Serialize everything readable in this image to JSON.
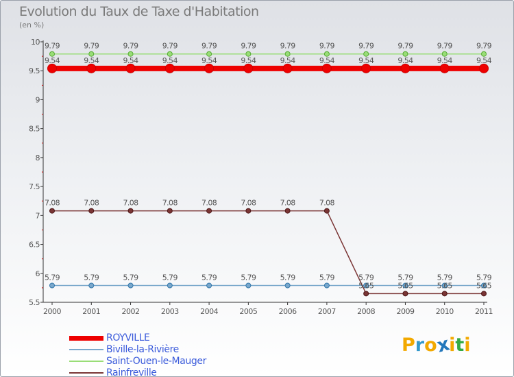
{
  "chart_data": {
    "type": "line",
    "title": "Evolution du Taux de Taxe d'Habitation",
    "subtitle": "(en %)",
    "xlabel": "",
    "ylabel": "",
    "x": [
      "2000",
      "2001",
      "2002",
      "2003",
      "2004",
      "2005",
      "2006",
      "2007",
      "2008",
      "2009",
      "2010",
      "2011"
    ],
    "ylim": [
      5.5,
      10
    ],
    "yticks": [
      "5.5",
      "6",
      "6.5",
      "7",
      "7.5",
      "8",
      "8.5",
      "9",
      "9.5",
      "10"
    ],
    "grid": false,
    "series": [
      {
        "name": "Saint-Ouen-le-Mauger",
        "color": "#99dd77",
        "lineWidth": 1.5,
        "values": [
          9.79,
          9.79,
          9.79,
          9.79,
          9.79,
          9.79,
          9.79,
          9.79,
          9.79,
          9.79,
          9.79,
          9.79
        ],
        "labels": [
          "9.79",
          "9.79",
          "9.79",
          "9.79",
          "9.79",
          "9.79",
          "9.79",
          "9.79",
          "9.79",
          "9.79",
          "9.79",
          "9.79"
        ],
        "labelPos": "above"
      },
      {
        "name": "ROYVILLE",
        "color": "#ee0000",
        "lineWidth": 8,
        "values": [
          9.54,
          9.54,
          9.54,
          9.54,
          9.54,
          9.54,
          9.54,
          9.54,
          9.54,
          9.54,
          9.54,
          9.54
        ],
        "labels": [
          "9.54",
          "9.54",
          "9.54",
          "9.54",
          "9.54",
          "9.54",
          "9.54",
          "9.54",
          "9.54",
          "9.54",
          "9.54",
          "9.54"
        ],
        "labelPos": "above"
      },
      {
        "name": "Rainfreville",
        "color": "#7a3535",
        "lineWidth": 1.5,
        "values": [
          7.08,
          7.08,
          7.08,
          7.08,
          7.08,
          7.08,
          7.08,
          7.08,
          5.65,
          5.65,
          5.65,
          5.65
        ],
        "labels": [
          "7.08",
          "7.08",
          "7.08",
          "7.08",
          "7.08",
          "7.08",
          "7.08",
          "7.08",
          "5.65",
          "5.65",
          "5.65",
          "5.65"
        ],
        "labelPos": "above"
      },
      {
        "name": "Biville-la-Rivière",
        "color": "#7aa8cc",
        "lineWidth": 1.5,
        "values": [
          5.79,
          5.79,
          5.79,
          5.79,
          5.79,
          5.79,
          5.79,
          5.79,
          5.79,
          5.79,
          5.79,
          5.79
        ],
        "labels": [
          "5.79",
          "5.79",
          "5.79",
          "5.79",
          "5.79",
          "5.79",
          "5.79",
          "5.79",
          "5.79",
          "5.79",
          "5.79",
          "5.79"
        ],
        "labelPos": "above"
      }
    ],
    "legend": [
      {
        "name": "ROYVILLE",
        "color": "#ee0000"
      },
      {
        "name": "Biville-la-Rivière",
        "color": "#7aa8cc"
      },
      {
        "name": "Saint-Ouen-le-Mauger",
        "color": "#99dd77"
      },
      {
        "name": "Rainfreville",
        "color": "#7a3535"
      }
    ]
  },
  "branding": {
    "text": "Proxiti",
    "letters": [
      {
        "char": "P",
        "color": "#f2a900"
      },
      {
        "char": "r",
        "color": "#3399cc"
      },
      {
        "char": "o",
        "color": "#f2a900"
      },
      {
        "char": "x",
        "color": "#2277bb",
        "star": true
      },
      {
        "char": "i",
        "color": "#f2a900"
      },
      {
        "char": "t",
        "color": "#33aa44"
      },
      {
        "char": "i",
        "color": "#f2a900"
      }
    ]
  }
}
